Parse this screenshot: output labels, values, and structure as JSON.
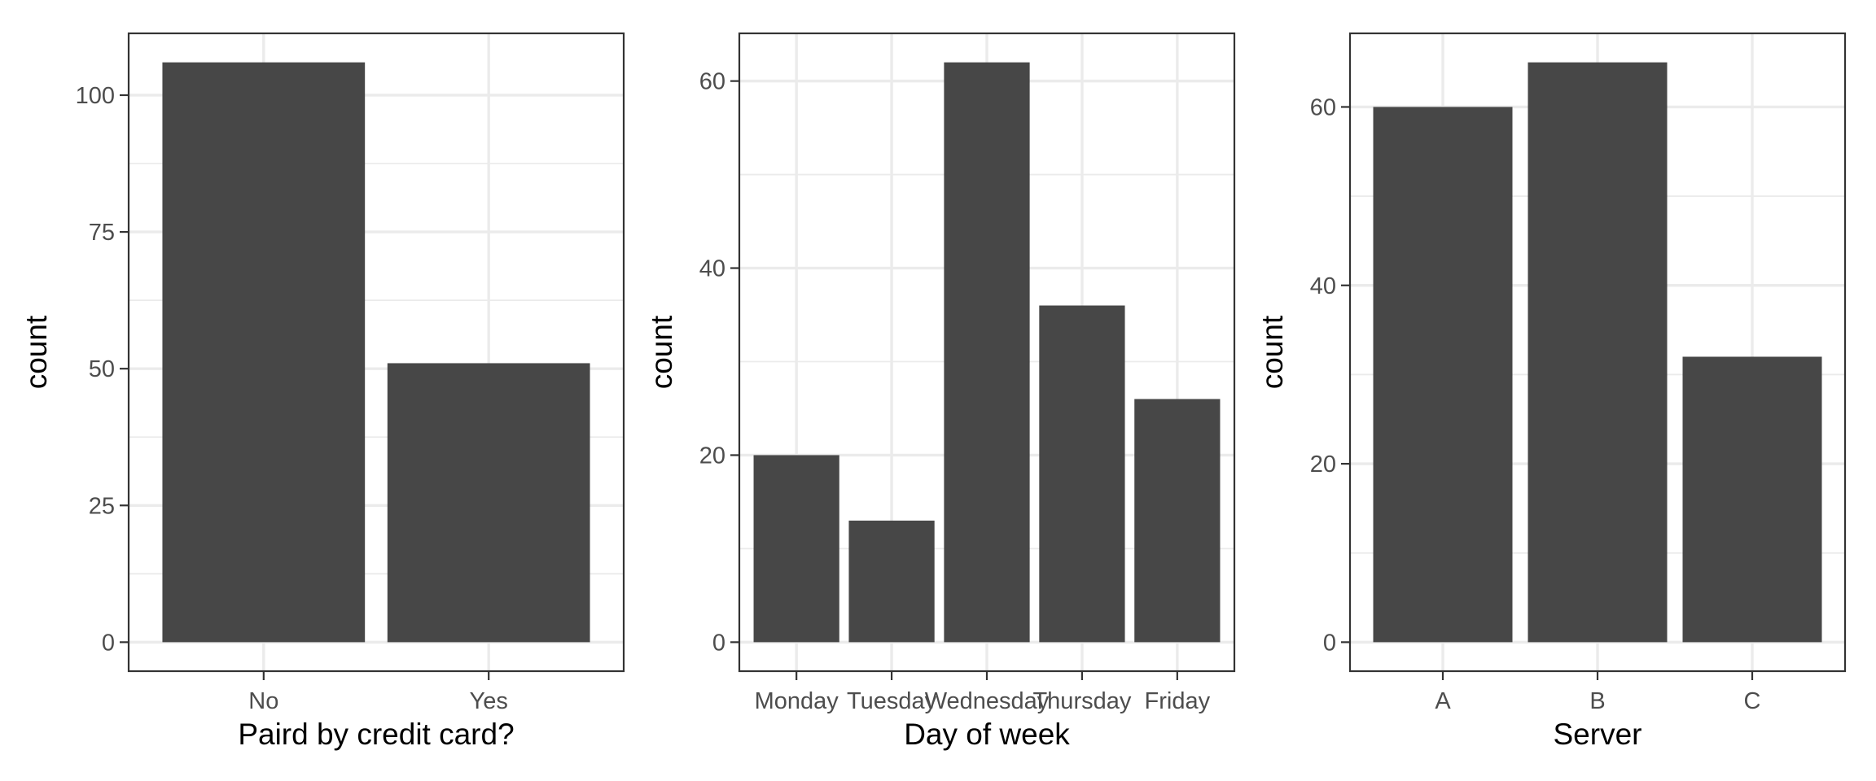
{
  "chart_data": [
    {
      "type": "bar",
      "categories": [
        "No",
        "Yes"
      ],
      "values": [
        106,
        51
      ],
      "xlabel": "Paird by credit card?",
      "ylabel": "count",
      "ylim": [
        -5.3,
        111.3
      ],
      "yticks": [
        0,
        25,
        50,
        75,
        100
      ],
      "grid": true,
      "bar_color": "#474747"
    },
    {
      "type": "bar",
      "categories": [
        "Monday",
        "Tuesday",
        "Wednesday",
        "Thursday",
        "Friday"
      ],
      "values": [
        20,
        13,
        62,
        36,
        26
      ],
      "xlabel": "Day of week",
      "ylabel": "count",
      "ylim": [
        -3.1,
        65.1
      ],
      "yticks": [
        0,
        20,
        40,
        60
      ],
      "grid": true,
      "bar_color": "#474747"
    },
    {
      "type": "bar",
      "categories": [
        "A",
        "B",
        "C"
      ],
      "values": [
        60,
        65,
        32
      ],
      "xlabel": "Server",
      "ylabel": "count",
      "ylim": [
        -3.25,
        68.25
      ],
      "yticks": [
        0,
        20,
        40,
        60
      ],
      "grid": true,
      "bar_color": "#474747"
    }
  ]
}
